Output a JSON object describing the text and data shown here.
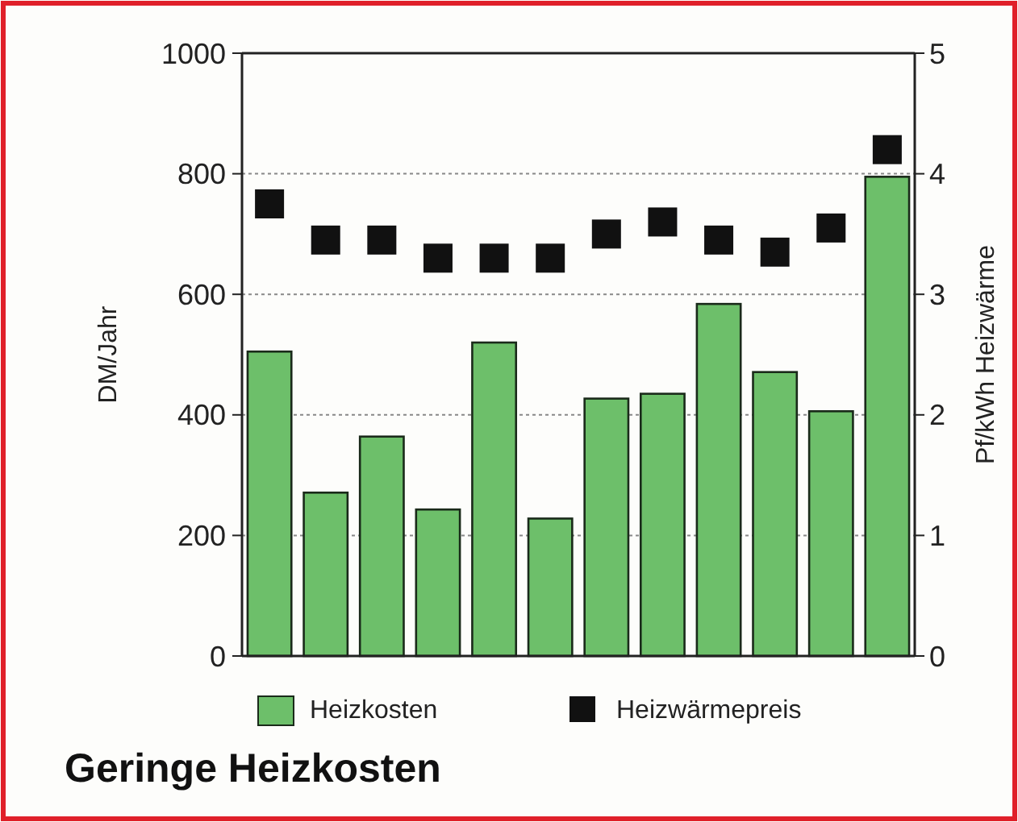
{
  "chart_data": {
    "type": "bar",
    "title": "Geringe Heizkosten",
    "ylabel": "DM/Jahr",
    "y2label": "Pf/kWh Heizwärme",
    "categories": [
      null,
      null,
      null,
      null,
      null,
      null,
      null,
      null,
      null,
      null,
      null,
      null
    ],
    "series": [
      {
        "name": "Heizkosten",
        "color": "#6dbf6a",
        "values": [
          505,
          271,
          364,
          243,
          520,
          228,
          427,
          435,
          584,
          471,
          406,
          795
        ]
      },
      {
        "name": "Heizwärmepreis",
        "type": "scatter",
        "axis": "y2",
        "color": "#111111",
        "marker": "square",
        "values": [
          3.75,
          3.45,
          3.45,
          3.3,
          3.3,
          3.3,
          3.5,
          3.6,
          3.45,
          3.35,
          3.55,
          4.2
        ]
      }
    ],
    "ylim": [
      0,
      1000
    ],
    "yticks": [
      0,
      200,
      400,
      600,
      800,
      1000
    ],
    "y2lim": [
      0,
      5
    ],
    "y2ticks": [
      0,
      1,
      2,
      3,
      4,
      5
    ],
    "grid": "y",
    "legend": "bottom"
  }
}
